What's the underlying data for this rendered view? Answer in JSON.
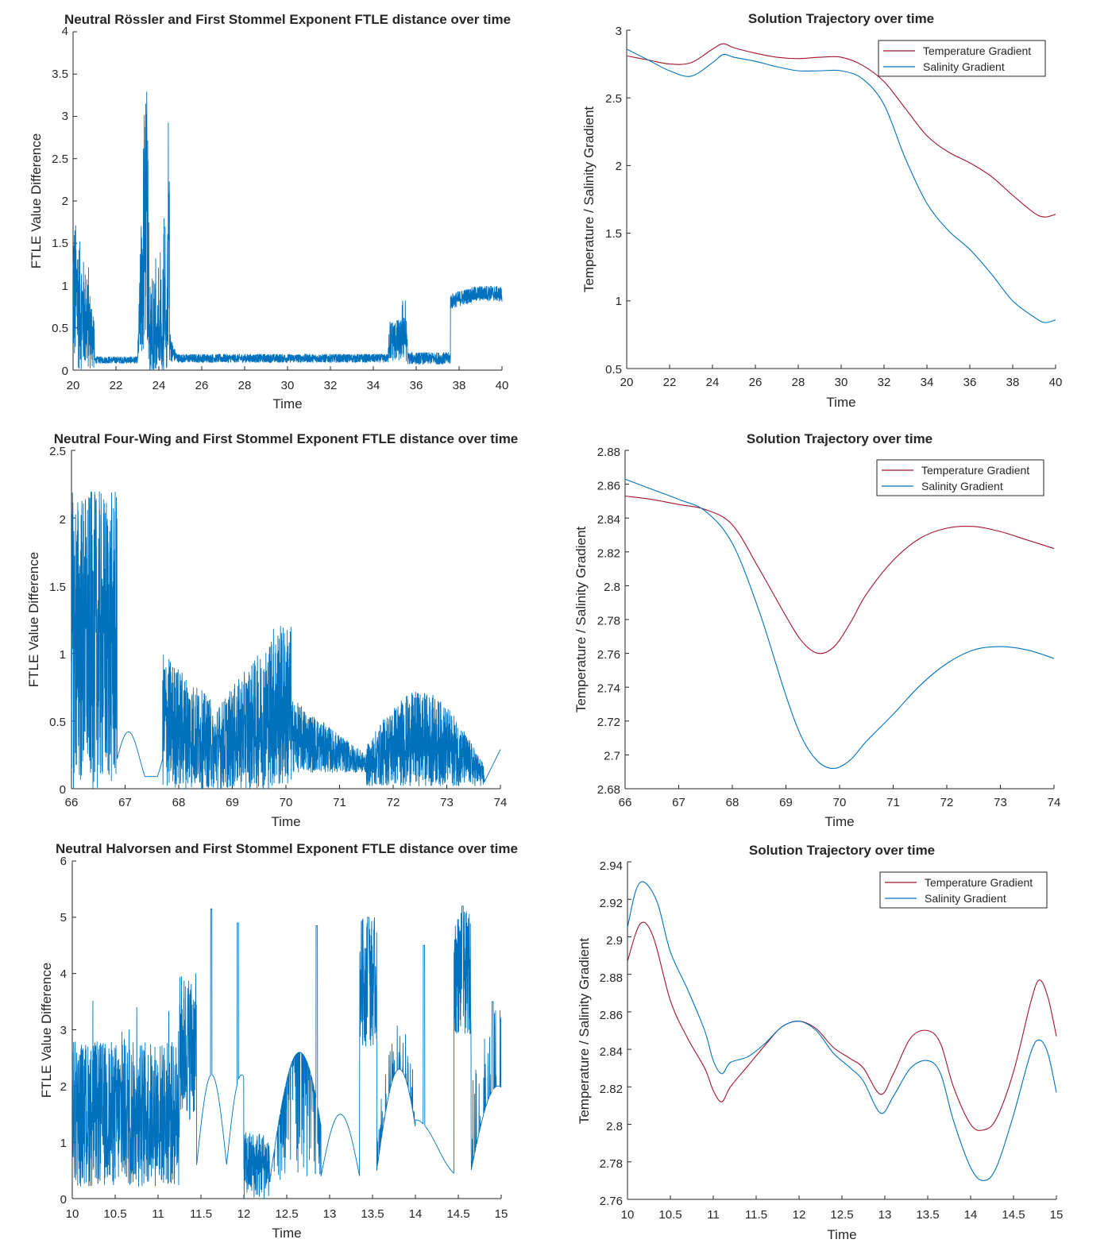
{
  "colors": {
    "ftle": "#0072BD",
    "temperature": "#A2142F",
    "salinity": "#0072BD",
    "axis": "#262626"
  },
  "chart_data": [
    {
      "id": "rossler-ftle",
      "type": "line",
      "title": "Neutral Rössler and First Stommel Exponent FTLE distance over time",
      "xlabel": "Time",
      "ylabel": "FTLE Value Difference",
      "xlim": [
        20,
        40
      ],
      "ylim": [
        0,
        4
      ],
      "xticks": [
        20,
        22,
        24,
        26,
        28,
        30,
        32,
        34,
        36,
        38,
        40
      ],
      "xtick_labels": [
        "20",
        "22",
        "24",
        "26",
        "28",
        "30",
        "32",
        "34",
        "36",
        "38",
        "40"
      ],
      "yticks": [
        0,
        0.5,
        1,
        1.5,
        2,
        2.5,
        3,
        3.5,
        4
      ],
      "ytick_labels": [
        "0",
        "0.5",
        "1",
        "1.5",
        "2",
        "2.5",
        "3",
        "3.5",
        "4"
      ],
      "series": [
        {
          "name": "FTLE difference",
          "color": "#0072BD",
          "x": [],
          "y": []
        }
      ]
    },
    {
      "id": "rossler-traj",
      "type": "line",
      "title": "Solution Trajectory over time",
      "xlabel": "Time",
      "ylabel": "Temperature / Salinity Gradient",
      "xlim": [
        20,
        40
      ],
      "ylim": [
        0.5,
        3
      ],
      "xticks": [
        20,
        22,
        24,
        26,
        28,
        30,
        32,
        34,
        36,
        38,
        40
      ],
      "xtick_labels": [
        "20",
        "22",
        "24",
        "26",
        "28",
        "30",
        "32",
        "34",
        "36",
        "38",
        "40"
      ],
      "yticks": [
        0.5,
        1,
        1.5,
        2,
        2.5,
        3
      ],
      "ytick_labels": [
        "0.5",
        "1",
        "1.5",
        "2",
        "2.5",
        "3"
      ],
      "legend": "top-right",
      "series": [
        {
          "name": "Temperature Gradient",
          "color": "#A2142F",
          "x": [
            20,
            21,
            22,
            23,
            24,
            24.5,
            25,
            26,
            27,
            28,
            29,
            30,
            31,
            32,
            33,
            34,
            35,
            36,
            37,
            38,
            39,
            39.5,
            40
          ],
          "y": [
            2.81,
            2.78,
            2.75,
            2.76,
            2.86,
            2.9,
            2.87,
            2.83,
            2.8,
            2.79,
            2.8,
            2.8,
            2.74,
            2.62,
            2.42,
            2.22,
            2.1,
            2.02,
            1.92,
            1.78,
            1.65,
            1.62,
            1.64
          ]
        },
        {
          "name": "Salinity Gradient",
          "color": "#0072BD",
          "x": [
            20,
            21,
            22,
            23,
            24,
            24.5,
            25,
            26,
            27,
            28,
            29,
            30,
            31,
            32,
            33,
            34,
            35,
            36,
            37,
            38,
            39,
            39.5,
            40
          ],
          "y": [
            2.86,
            2.78,
            2.7,
            2.66,
            2.76,
            2.82,
            2.8,
            2.77,
            2.73,
            2.7,
            2.7,
            2.7,
            2.64,
            2.45,
            2.05,
            1.72,
            1.52,
            1.38,
            1.2,
            1.0,
            0.88,
            0.84,
            0.86
          ]
        }
      ]
    },
    {
      "id": "fourwing-ftle",
      "type": "line",
      "title": "Neutral Four-Wing and First Stommel Exponent FTLE distance over time",
      "xlabel": "Time",
      "ylabel": "FTLE Value Difference",
      "xlim": [
        66,
        74
      ],
      "ylim": [
        0,
        2.5
      ],
      "xticks": [
        66,
        67,
        68,
        69,
        70,
        71,
        72,
        73,
        74
      ],
      "xtick_labels": [
        "66",
        "67",
        "68",
        "69",
        "70",
        "71",
        "72",
        "73",
        "74"
      ],
      "yticks": [
        0,
        0.5,
        1,
        1.5,
        2,
        2.5
      ],
      "ytick_labels": [
        "0",
        "0.5",
        "1",
        "1.5",
        "2",
        "2.5"
      ],
      "series": [
        {
          "name": "FTLE difference",
          "color": "#0072BD",
          "x": [],
          "y": []
        }
      ]
    },
    {
      "id": "fourwing-traj",
      "type": "line",
      "title": "Solution Trajectory over time",
      "xlabel": "Time",
      "ylabel": "Temperature / Salinity Gradient",
      "xlim": [
        66,
        74
      ],
      "ylim": [
        2.68,
        2.88
      ],
      "xticks": [
        66,
        67,
        68,
        69,
        70,
        71,
        72,
        73,
        74
      ],
      "xtick_labels": [
        "66",
        "67",
        "68",
        "69",
        "70",
        "71",
        "72",
        "73",
        "74"
      ],
      "yticks": [
        2.68,
        2.7,
        2.72,
        2.74,
        2.76,
        2.78,
        2.8,
        2.82,
        2.84,
        2.86,
        2.88
      ],
      "ytick_labels": [
        "2.68",
        "2.7",
        "2.72",
        "2.74",
        "2.76",
        "2.78",
        "2.8",
        "2.82",
        "2.84",
        "2.86",
        "2.88"
      ],
      "legend": "top-right",
      "series": [
        {
          "name": "Temperature Gradient",
          "color": "#A2142F",
          "x": [
            66,
            66.5,
            67,
            67.5,
            68,
            68.5,
            69,
            69.3,
            69.6,
            69.9,
            70.2,
            70.5,
            71,
            71.5,
            72,
            72.5,
            73,
            73.5,
            74
          ],
          "y": [
            2.853,
            2.851,
            2.848,
            2.845,
            2.836,
            2.81,
            2.782,
            2.767,
            2.76,
            2.764,
            2.778,
            2.795,
            2.815,
            2.828,
            2.834,
            2.835,
            2.832,
            2.827,
            2.822
          ]
        },
        {
          "name": "Salinity Gradient",
          "color": "#0072BD",
          "x": [
            66,
            66.5,
            67,
            67.5,
            68,
            68.5,
            69,
            69.3,
            69.6,
            69.9,
            70.2,
            70.5,
            71,
            71.5,
            72,
            72.5,
            73,
            73.5,
            74
          ],
          "y": [
            2.863,
            2.857,
            2.851,
            2.844,
            2.825,
            2.785,
            2.735,
            2.71,
            2.696,
            2.692,
            2.697,
            2.708,
            2.724,
            2.741,
            2.754,
            2.762,
            2.764,
            2.762,
            2.757
          ]
        }
      ]
    },
    {
      "id": "halvorsen-ftle",
      "type": "line",
      "title": "Neutral Halvorsen and First Stommel Exponent FTLE distance over time",
      "xlabel": "Time",
      "ylabel": "FTLE Value Difference",
      "xlim": [
        10,
        15
      ],
      "ylim": [
        0,
        6
      ],
      "xticks": [
        10,
        10.5,
        11,
        11.5,
        12,
        12.5,
        13,
        13.5,
        14,
        14.5,
        15
      ],
      "xtick_labels": [
        "10",
        "10.5",
        "11",
        "11.5",
        "12",
        "12.5",
        "13",
        "13.5",
        "14",
        "14.5",
        "15"
      ],
      "yticks": [
        0,
        1,
        2,
        3,
        4,
        5,
        6
      ],
      "ytick_labels": [
        "0",
        "1",
        "2",
        "3",
        "4",
        "5",
        "6"
      ],
      "series": [
        {
          "name": "FTLE difference",
          "color": "#0072BD",
          "x": [],
          "y": []
        }
      ]
    },
    {
      "id": "halvorsen-traj",
      "type": "line",
      "title": "Solution Trajectory over time",
      "xlabel": "Time",
      "ylabel": "Temperature / Salinity Gradient",
      "xlim": [
        10,
        15
      ],
      "ylim": [
        2.76,
        2.94
      ],
      "xticks": [
        10,
        10.5,
        11,
        11.5,
        12,
        12.5,
        13,
        13.5,
        14,
        14.5,
        15
      ],
      "xtick_labels": [
        "10",
        "10.5",
        "11",
        "11.5",
        "12",
        "12.5",
        "13",
        "13.5",
        "14",
        "14.5",
        "15"
      ],
      "yticks": [
        2.76,
        2.78,
        2.8,
        2.82,
        2.84,
        2.86,
        2.88,
        2.9,
        2.92,
        2.94
      ],
      "ytick_labels": [
        "2.76",
        "2.78",
        "2.8",
        "2.82",
        "2.84",
        "2.86",
        "2.88",
        "2.9",
        "2.92",
        "2.94"
      ],
      "legend": "top-right",
      "series": [
        {
          "name": "Temperature Gradient",
          "color": "#A2142F",
          "x": [
            10,
            10.15,
            10.3,
            10.5,
            10.7,
            10.9,
            11.0,
            11.1,
            11.2,
            11.4,
            11.6,
            11.8,
            12.0,
            12.2,
            12.4,
            12.6,
            12.75,
            12.95,
            13.1,
            13.3,
            13.5,
            13.65,
            13.8,
            14.0,
            14.15,
            14.3,
            14.5,
            14.7,
            14.8,
            14.9,
            15.0
          ],
          "y": [
            2.887,
            2.907,
            2.9,
            2.866,
            2.846,
            2.83,
            2.818,
            2.812,
            2.82,
            2.831,
            2.842,
            2.852,
            2.855,
            2.851,
            2.841,
            2.835,
            2.83,
            2.816,
            2.827,
            2.846,
            2.85,
            2.843,
            2.82,
            2.8,
            2.797,
            2.803,
            2.828,
            2.865,
            2.877,
            2.868,
            2.847
          ]
        },
        {
          "name": "Salinity Gradient",
          "color": "#0072BD",
          "x": [
            10,
            10.1,
            10.2,
            10.35,
            10.5,
            10.7,
            10.9,
            11.0,
            11.1,
            11.2,
            11.4,
            11.6,
            11.8,
            12.0,
            12.2,
            12.4,
            12.6,
            12.75,
            12.95,
            13.1,
            13.3,
            13.5,
            13.65,
            13.8,
            14.0,
            14.15,
            14.3,
            14.5,
            14.7,
            14.8,
            14.9,
            15.0
          ],
          "y": [
            2.905,
            2.925,
            2.929,
            2.918,
            2.892,
            2.872,
            2.85,
            2.834,
            2.827,
            2.833,
            2.836,
            2.843,
            2.852,
            2.855,
            2.85,
            2.838,
            2.83,
            2.823,
            2.806,
            2.815,
            2.83,
            2.834,
            2.827,
            2.802,
            2.777,
            2.77,
            2.777,
            2.805,
            2.838,
            2.845,
            2.838,
            2.817
          ]
        }
      ]
    }
  ]
}
